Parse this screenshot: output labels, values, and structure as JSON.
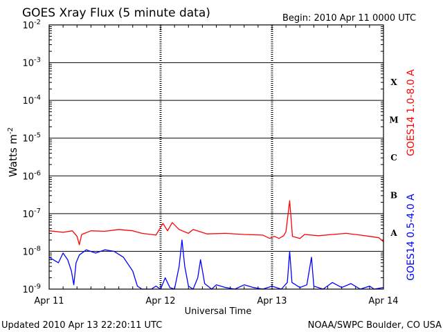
{
  "chart_data": {
    "type": "line",
    "title": "GOES Xray Flux (5 minute data)",
    "begin_label": "Begin:  2010 Apr 11 0000 UTC",
    "xlabel": "Universal Time",
    "ylabel_base": "Watts m",
    "ylabel_exp": "-2",
    "updated": "Updated 2010 Apr 13 22:20:11 UTC",
    "credit": "NOAA/SWPC Boulder, CO USA",
    "x_ticks": [
      "Apr 11",
      "Apr 12",
      "Apr 13",
      "Apr 14"
    ],
    "x_range_hours": [
      0,
      72
    ],
    "y_scale": "log",
    "ylim": [
      1e-09,
      0.01
    ],
    "y_ticks": [
      {
        "base": "10",
        "exp": "-9",
        "value": 1e-09
      },
      {
        "base": "10",
        "exp": "-8",
        "value": 1e-08
      },
      {
        "base": "10",
        "exp": "-7",
        "value": 1e-07
      },
      {
        "base": "10",
        "exp": "-6",
        "value": 1e-06
      },
      {
        "base": "10",
        "exp": "-5",
        "value": 1e-05
      },
      {
        "base": "10",
        "exp": "-4",
        "value": 0.0001
      },
      {
        "base": "10",
        "exp": "-3",
        "value": 0.001
      },
      {
        "base": "10",
        "exp": "-2",
        "value": 0.01
      }
    ],
    "flare_classes": [
      {
        "label": "A",
        "value": 3e-08
      },
      {
        "label": "B",
        "value": 3e-07
      },
      {
        "label": "C",
        "value": 3e-06
      },
      {
        "label": "M",
        "value": 3e-05
      },
      {
        "label": "X",
        "value": 0.0003
      }
    ],
    "grid": "horizontal",
    "series": [
      {
        "name": "GOES14 1.0-8.0 A",
        "color": "#ff0000",
        "points": [
          [
            0,
            3.5e-08
          ],
          [
            3,
            3.2e-08
          ],
          [
            5,
            3.5e-08
          ],
          [
            6,
            2.5e-08
          ],
          [
            6.5,
            1.5e-08
          ],
          [
            7,
            2.8e-08
          ],
          [
            9,
            3.5e-08
          ],
          [
            12,
            3.4e-08
          ],
          [
            15,
            3.8e-08
          ],
          [
            18,
            3.5e-08
          ],
          [
            20,
            3e-08
          ],
          [
            22,
            2.8e-08
          ],
          [
            23,
            2.7e-08
          ],
          [
            24.5,
            5.5e-08
          ],
          [
            25.5,
            3.5e-08
          ],
          [
            26.5,
            5.8e-08
          ],
          [
            28,
            3.8e-08
          ],
          [
            30,
            3e-08
          ],
          [
            31,
            3.8e-08
          ],
          [
            34,
            2.9e-08
          ],
          [
            38,
            3e-08
          ],
          [
            42,
            2.8e-08
          ],
          [
            46,
            2.7e-08
          ],
          [
            47.5,
            2.2e-08
          ],
          [
            48.5,
            2.5e-08
          ],
          [
            49.5,
            2.2e-08
          ],
          [
            50.5,
            2.6e-08
          ],
          [
            51,
            3.3e-08
          ],
          [
            51.8,
            2.2e-07
          ],
          [
            52.4,
            2.5e-08
          ],
          [
            54,
            2.2e-08
          ],
          [
            55,
            2.8e-08
          ],
          [
            58,
            2.6e-08
          ],
          [
            61,
            2.8e-08
          ],
          [
            64,
            3e-08
          ],
          [
            67,
            2.7e-08
          ],
          [
            69,
            2.5e-08
          ],
          [
            71,
            2.3e-08
          ],
          [
            72,
            1.8e-08
          ]
        ]
      },
      {
        "name": "GOES14 0.5-4.0 A",
        "color": "#0000ff",
        "points": [
          [
            0,
            7e-09
          ],
          [
            2,
            5e-09
          ],
          [
            3,
            9e-09
          ],
          [
            4,
            6e-09
          ],
          [
            4.8,
            3e-09
          ],
          [
            5.3,
            1.3e-09
          ],
          [
            5.8,
            5e-09
          ],
          [
            6.5,
            8e-09
          ],
          [
            8,
            1.1e-08
          ],
          [
            10,
            9e-09
          ],
          [
            12,
            1.1e-08
          ],
          [
            14,
            1e-08
          ],
          [
            16,
            7e-09
          ],
          [
            18,
            3e-09
          ],
          [
            19,
            1.2e-09
          ],
          [
            20,
            1e-09
          ],
          [
            22,
            1e-09
          ],
          [
            23,
            1.2e-09
          ],
          [
            24,
            1e-09
          ],
          [
            25,
            2e-09
          ],
          [
            26,
            1.1e-09
          ],
          [
            27,
            1e-09
          ],
          [
            28,
            4e-09
          ],
          [
            28.6,
            2e-08
          ],
          [
            29.2,
            4e-09
          ],
          [
            30,
            1.2e-09
          ],
          [
            31,
            1e-09
          ],
          [
            32,
            2e-09
          ],
          [
            32.6,
            6e-09
          ],
          [
            33.5,
            1.4e-09
          ],
          [
            35,
            1e-09
          ],
          [
            36,
            1.3e-09
          ],
          [
            38,
            1.1e-09
          ],
          [
            40,
            1e-09
          ],
          [
            42,
            1.3e-09
          ],
          [
            44,
            1.1e-09
          ],
          [
            46,
            1e-09
          ],
          [
            48,
            1.2e-09
          ],
          [
            50,
            1e-09
          ],
          [
            51.3,
            1.5e-09
          ],
          [
            51.8,
            1e-08
          ],
          [
            52.3,
            1.5e-09
          ],
          [
            54,
            1.1e-09
          ],
          [
            55.5,
            1.3e-09
          ],
          [
            56.5,
            7e-09
          ],
          [
            57,
            1.2e-09
          ],
          [
            59,
            1e-09
          ],
          [
            61,
            1.5e-09
          ],
          [
            63,
            1.1e-09
          ],
          [
            65,
            1.4e-09
          ],
          [
            67,
            1e-09
          ],
          [
            69,
            1.2e-09
          ],
          [
            70,
            1e-09
          ],
          [
            72,
            1.1e-09
          ]
        ]
      }
    ]
  }
}
